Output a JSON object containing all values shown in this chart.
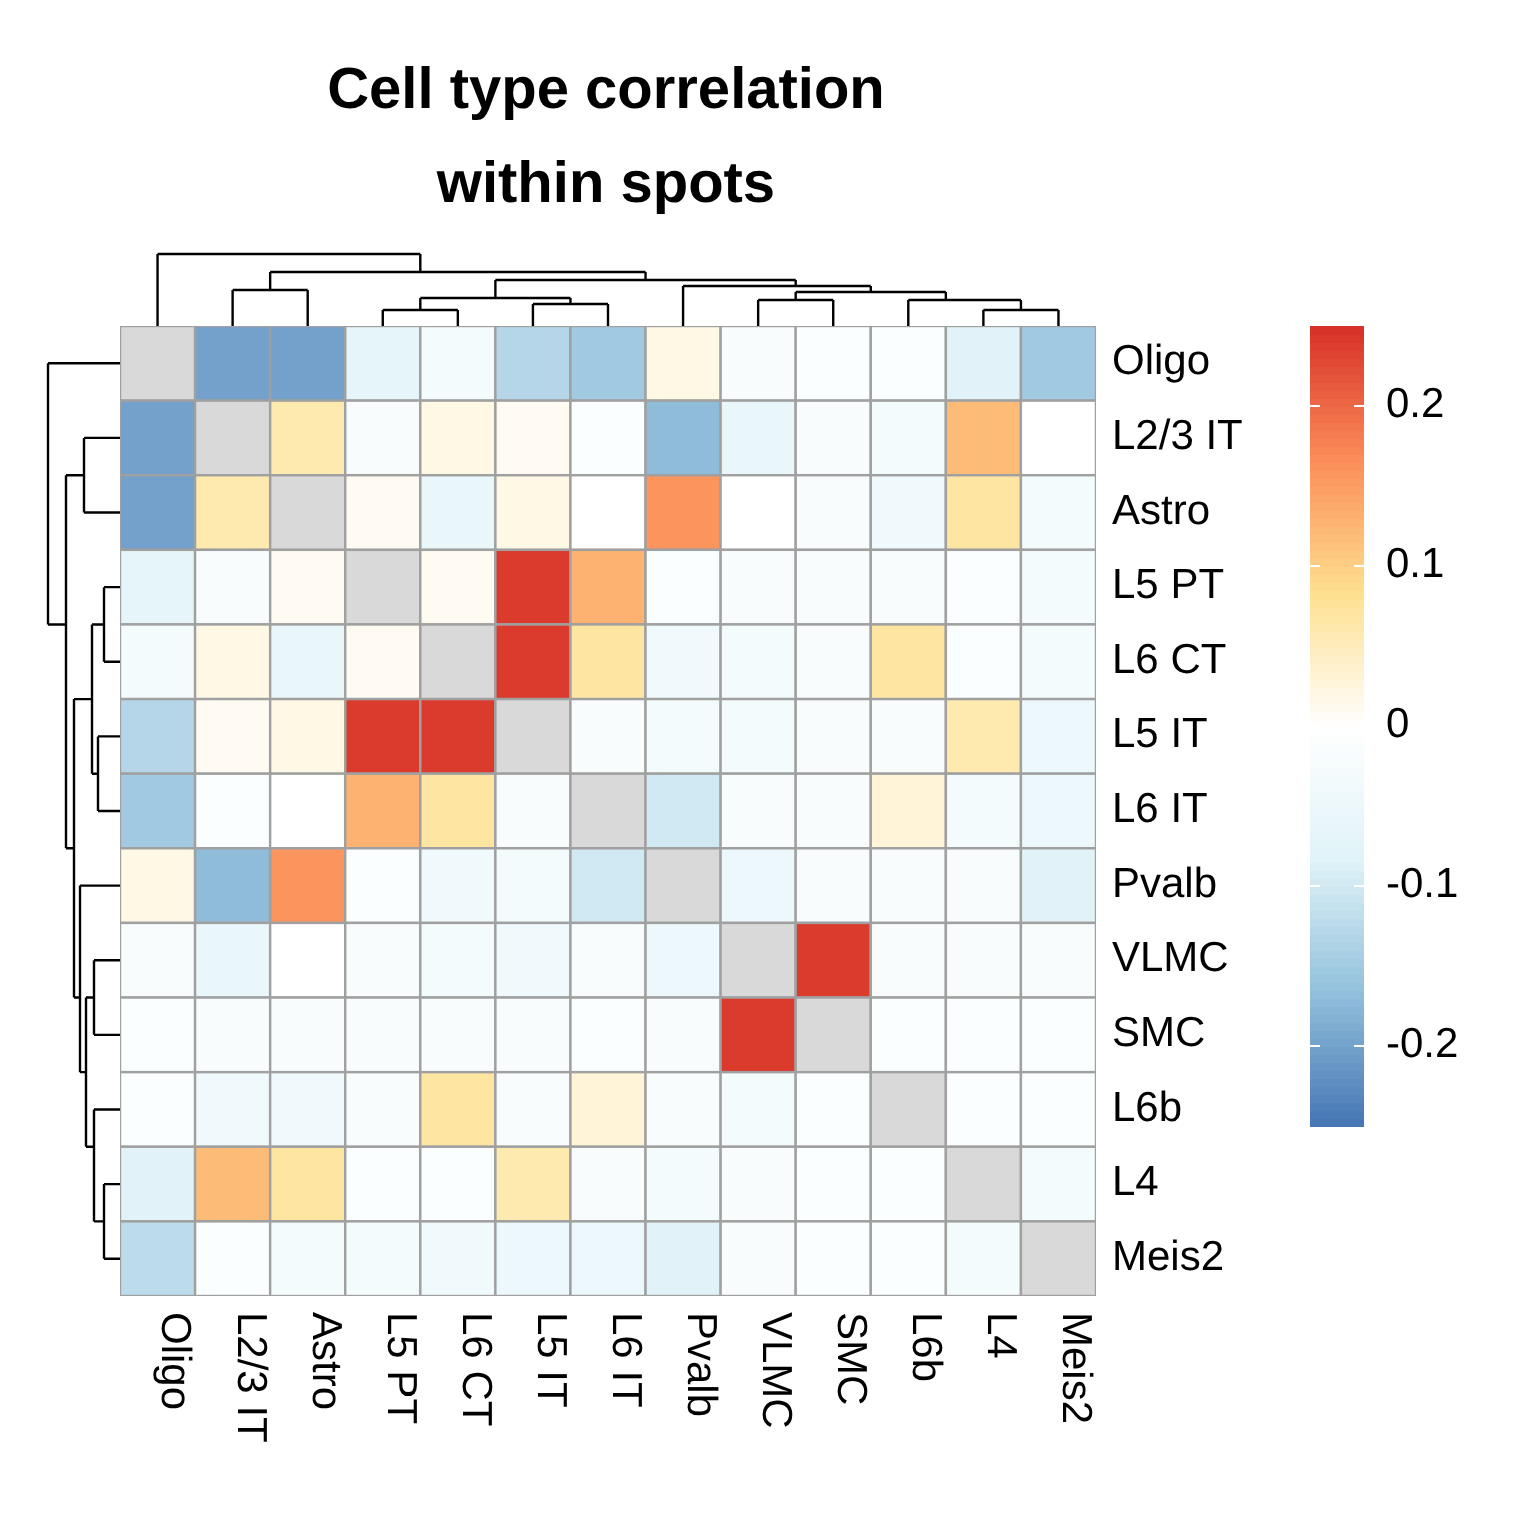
{
  "chart_data": {
    "type": "heatmap",
    "title": "Cell type correlation within spots",
    "categories": [
      "Oligo",
      "L2/3 IT",
      "Astro",
      "L5 PT",
      "L6 CT",
      "L5 IT",
      "L6 IT",
      "Pvalb",
      "VLMC",
      "SMC",
      "L6b",
      "L4",
      "Meis2"
    ],
    "y_categories": [
      "Oligo",
      "L2/3 IT",
      "Astro",
      "L5 PT",
      "L6 CT",
      "L5 IT",
      "L6 IT",
      "Pvalb",
      "VLMC",
      "SMC",
      "L6b",
      "L4",
      "Meis2"
    ],
    "cells": [
      [
        null,
        -0.2,
        -0.2,
        -0.07,
        -0.03,
        -0.13,
        -0.15,
        0.02,
        -0.02,
        -0.01,
        -0.01,
        -0.08,
        -0.15
      ],
      [
        -0.2,
        null,
        0.06,
        -0.02,
        0.02,
        0.01,
        -0.01,
        -0.17,
        -0.06,
        -0.02,
        -0.03,
        0.12,
        0.0
      ],
      [
        -0.2,
        0.06,
        null,
        0.01,
        -0.06,
        0.02,
        0.0,
        0.16,
        0.0,
        -0.02,
        -0.04,
        0.07,
        -0.03
      ],
      [
        -0.07,
        -0.02,
        0.01,
        null,
        0.01,
        0.24,
        0.13,
        -0.01,
        -0.02,
        -0.02,
        -0.02,
        -0.01,
        -0.03
      ],
      [
        -0.03,
        0.02,
        -0.06,
        0.01,
        null,
        0.24,
        0.07,
        -0.04,
        -0.03,
        -0.02,
        0.07,
        -0.01,
        -0.03
      ],
      [
        -0.13,
        0.01,
        0.02,
        0.24,
        0.24,
        null,
        -0.02,
        -0.03,
        -0.03,
        -0.02,
        -0.02,
        0.06,
        -0.05
      ],
      [
        -0.15,
        -0.01,
        0.0,
        0.13,
        0.07,
        -0.02,
        null,
        -0.1,
        -0.02,
        -0.02,
        0.03,
        -0.03,
        -0.05
      ],
      [
        0.02,
        -0.17,
        0.16,
        -0.01,
        -0.04,
        -0.03,
        -0.1,
        null,
        -0.05,
        -0.02,
        -0.02,
        -0.02,
        -0.08
      ],
      [
        -0.02,
        -0.06,
        0.0,
        -0.02,
        -0.03,
        -0.04,
        -0.02,
        -0.05,
        null,
        0.24,
        -0.02,
        -0.02,
        -0.02
      ],
      [
        -0.01,
        -0.02,
        -0.02,
        -0.02,
        -0.02,
        -0.02,
        -0.01,
        -0.02,
        0.24,
        null,
        -0.01,
        -0.01,
        -0.01
      ],
      [
        -0.01,
        -0.04,
        -0.04,
        -0.02,
        0.07,
        -0.02,
        0.03,
        -0.02,
        -0.03,
        -0.01,
        null,
        -0.01,
        -0.01
      ],
      [
        -0.08,
        0.12,
        0.07,
        -0.01,
        -0.01,
        0.06,
        -0.02,
        -0.03,
        -0.02,
        -0.01,
        -0.01,
        null,
        -0.03
      ],
      [
        -0.12,
        -0.01,
        -0.03,
        -0.03,
        -0.04,
        -0.05,
        -0.05,
        -0.08,
        -0.02,
        -0.01,
        -0.01,
        -0.03,
        null
      ]
    ],
    "clim": [
      -0.25,
      0.25
    ],
    "cticks": [
      -0.2,
      -0.1,
      0,
      0.1,
      0.2
    ]
  }
}
